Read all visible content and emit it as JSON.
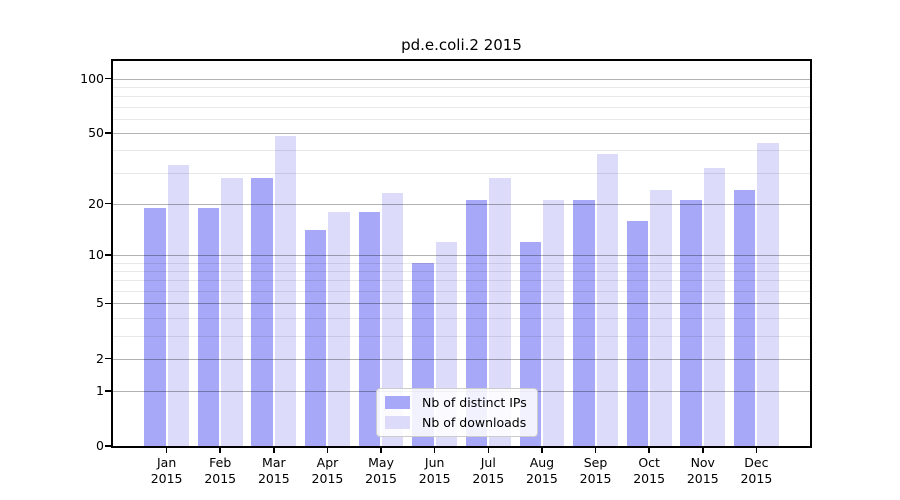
{
  "chart_data": {
    "type": "bar",
    "title": "pd.e.coli.2 2015",
    "categories": [
      "Jan",
      "Feb",
      "Mar",
      "Apr",
      "May",
      "Jun",
      "Jul",
      "Aug",
      "Sep",
      "Oct",
      "Nov",
      "Dec"
    ],
    "category_year": "2015",
    "series": [
      {
        "name": "Nb of distinct IPs",
        "color": "#a8a8f8",
        "values": [
          19,
          19,
          28,
          14,
          18,
          9,
          21,
          12,
          21,
          16,
          21,
          24
        ]
      },
      {
        "name": "Nb of downloads",
        "color": "#dcdcfa",
        "values": [
          33,
          28,
          48,
          18,
          23,
          12,
          28,
          21,
          38,
          24,
          32,
          44
        ]
      }
    ],
    "yscale": "log1p",
    "ylim": [
      0,
      125
    ],
    "ytick_values": [
      0,
      1,
      2,
      5,
      10,
      20,
      50,
      100
    ],
    "minor_grid_values": [
      3,
      4,
      6,
      7,
      8,
      9,
      30,
      40,
      60,
      70,
      80,
      90
    ],
    "grid": true,
    "legend_position": "lower center",
    "xlabel": "",
    "ylabel": ""
  },
  "colors": {
    "spine": "#000000",
    "major_grid": "rgba(0,0,0,0.30)",
    "minor_grid": "rgba(0,0,0,0.09)",
    "background": "#ffffff",
    "legend_border": "#cccccc"
  }
}
